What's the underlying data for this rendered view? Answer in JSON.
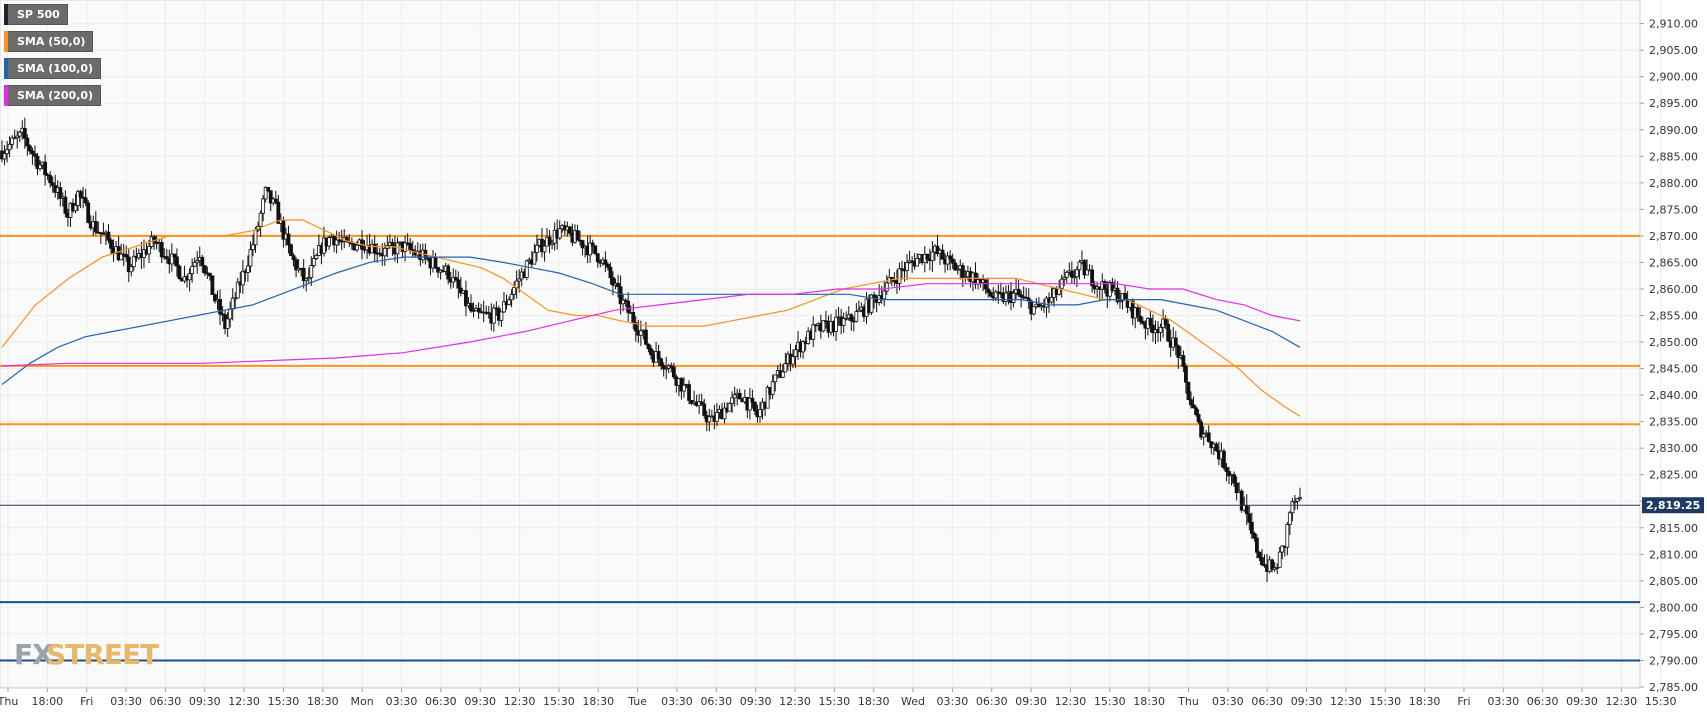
{
  "legend": {
    "main": {
      "label": "SP 500",
      "color": "#222222"
    },
    "sma50": {
      "label": "SMA (50,0)",
      "color": "#f7931e"
    },
    "sma100": {
      "label": "SMA (100,0)",
      "color": "#2165b0"
    },
    "sma200": {
      "label": "SMA (200,0)",
      "color": "#e52be5"
    }
  },
  "watermark": {
    "fx": "FX",
    "street": "STREET"
  },
  "chart_data": {
    "type": "candlestick",
    "symbol": "SP 500",
    "ylim": [
      2785,
      2912
    ],
    "y_ticks": [
      "2,785.00",
      "2,790.00",
      "2,795.00",
      "2,800.00",
      "2,805.00",
      "2,810.00",
      "2,815.00",
      "2,820.00",
      "2,825.00",
      "2,830.00",
      "2,835.00",
      "2,840.00",
      "2,845.00",
      "2,850.00",
      "2,855.00",
      "2,860.00",
      "2,865.00",
      "2,870.00",
      "2,875.00",
      "2,880.00",
      "2,885.00",
      "2,890.00",
      "2,895.00",
      "2,900.00",
      "2,905.00",
      "2,910.00"
    ],
    "x_ticks": [
      "Thu",
      "18:00",
      "Fri",
      "03:30",
      "06:30",
      "09:30",
      "12:30",
      "15:30",
      "18:30",
      "Mon",
      "03:30",
      "06:30",
      "09:30",
      "12:30",
      "15:30",
      "18:30",
      "Tue",
      "03:30",
      "06:30",
      "09:30",
      "12:30",
      "15:30",
      "18:30",
      "Wed",
      "03:30",
      "06:30",
      "09:30",
      "12:30",
      "15:30",
      "18:30",
      "Thu",
      "03:30",
      "06:30",
      "09:30",
      "12:30",
      "15:30",
      "18:30",
      "Fri",
      "03:30",
      "06:30",
      "09:30",
      "12:30",
      "15:30"
    ],
    "last_price": 2819.25,
    "last_price_label": "2,819.25",
    "horizontal_levels": [
      {
        "value": 2870,
        "color": "#f7931e"
      },
      {
        "value": 2845.5,
        "color": "#f7931e"
      },
      {
        "value": 2834.5,
        "color": "#f7931e"
      },
      {
        "value": 2801,
        "color": "#1c4e8a"
      },
      {
        "value": 2790,
        "color": "#1c4e8a"
      }
    ],
    "close_path": [
      [
        0,
        2886
      ],
      [
        8,
        2889
      ],
      [
        14,
        2884
      ],
      [
        20,
        2880
      ],
      [
        26,
        2874
      ],
      [
        30,
        2878
      ],
      [
        36,
        2872
      ],
      [
        44,
        2868
      ],
      [
        50,
        2864
      ],
      [
        60,
        2869
      ],
      [
        66,
        2866
      ],
      [
        72,
        2862
      ],
      [
        78,
        2867
      ],
      [
        84,
        2858
      ],
      [
        88,
        2853
      ],
      [
        96,
        2864
      ],
      [
        100,
        2870
      ],
      [
        104,
        2878
      ],
      [
        108,
        2875
      ],
      [
        114,
        2866
      ],
      [
        120,
        2861
      ],
      [
        126,
        2868
      ],
      [
        130,
        2870
      ],
      [
        136,
        2868
      ],
      [
        142,
        2869
      ],
      [
        150,
        2867
      ],
      [
        158,
        2868
      ],
      [
        166,
        2866
      ],
      [
        176,
        2863
      ],
      [
        186,
        2855
      ],
      [
        196,
        2855
      ],
      [
        204,
        2862
      ],
      [
        212,
        2868
      ],
      [
        220,
        2871
      ],
      [
        228,
        2869
      ],
      [
        236,
        2866
      ],
      [
        244,
        2858
      ],
      [
        252,
        2852
      ],
      [
        256,
        2848
      ],
      [
        262,
        2846
      ],
      [
        268,
        2842
      ],
      [
        274,
        2838
      ],
      [
        280,
        2835
      ],
      [
        286,
        2838
      ],
      [
        292,
        2840
      ],
      [
        298,
        2836
      ],
      [
        304,
        2842
      ],
      [
        312,
        2848
      ],
      [
        320,
        2852
      ],
      [
        326,
        2853
      ],
      [
        334,
        2854
      ],
      [
        342,
        2857
      ],
      [
        350,
        2861
      ],
      [
        356,
        2864
      ],
      [
        362,
        2866
      ],
      [
        368,
        2867
      ],
      [
        376,
        2864
      ],
      [
        384,
        2862
      ],
      [
        392,
        2858
      ],
      [
        400,
        2859
      ],
      [
        408,
        2856
      ],
      [
        414,
        2858
      ],
      [
        420,
        2862
      ],
      [
        426,
        2864
      ],
      [
        432,
        2861
      ],
      [
        440,
        2859
      ],
      [
        446,
        2856
      ],
      [
        452,
        2853
      ],
      [
        458,
        2853
      ],
      [
        464,
        2848
      ],
      [
        468,
        2840
      ],
      [
        472,
        2834
      ],
      [
        476,
        2832
      ],
      [
        480,
        2829
      ],
      [
        486,
        2824
      ],
      [
        490,
        2818
      ],
      [
        494,
        2812
      ],
      [
        498,
        2808
      ],
      [
        502,
        2807
      ],
      [
        506,
        2812
      ],
      [
        508,
        2818
      ],
      [
        510,
        2820
      ],
      [
        512,
        2819.25
      ]
    ],
    "candle_count": 520,
    "sma50_path": [
      [
        0,
        2849
      ],
      [
        12,
        2857
      ],
      [
        24,
        2862
      ],
      [
        36,
        2866
      ],
      [
        48,
        2868
      ],
      [
        60,
        2870
      ],
      [
        72,
        2870
      ],
      [
        80,
        2870
      ],
      [
        90,
        2871
      ],
      [
        100,
        2873
      ],
      [
        108,
        2873
      ],
      [
        116,
        2871
      ],
      [
        124,
        2869
      ],
      [
        132,
        2868
      ],
      [
        140,
        2868
      ],
      [
        148,
        2867
      ],
      [
        156,
        2866
      ],
      [
        164,
        2865
      ],
      [
        172,
        2864
      ],
      [
        180,
        2862
      ],
      [
        188,
        2859
      ],
      [
        196,
        2856
      ],
      [
        206,
        2855
      ],
      [
        214,
        2855
      ],
      [
        222,
        2854
      ],
      [
        232,
        2853
      ],
      [
        242,
        2853
      ],
      [
        252,
        2853
      ],
      [
        262,
        2854
      ],
      [
        272,
        2855
      ],
      [
        282,
        2856
      ],
      [
        292,
        2858
      ],
      [
        302,
        2860
      ],
      [
        312,
        2861
      ],
      [
        322,
        2862
      ],
      [
        332,
        2862
      ],
      [
        342,
        2862
      ],
      [
        350,
        2862
      ],
      [
        358,
        2862
      ],
      [
        364,
        2862
      ],
      [
        372,
        2861
      ],
      [
        380,
        2860
      ],
      [
        388,
        2859
      ],
      [
        396,
        2858
      ],
      [
        404,
        2858
      ],
      [
        412,
        2856
      ],
      [
        420,
        2854
      ],
      [
        428,
        2851
      ],
      [
        436,
        2848
      ],
      [
        444,
        2845
      ],
      [
        452,
        2841
      ],
      [
        460,
        2838
      ],
      [
        466,
        2836
      ]
    ],
    "sma100_path": [
      [
        0,
        2842
      ],
      [
        10,
        2846
      ],
      [
        20,
        2849
      ],
      [
        30,
        2851
      ],
      [
        40,
        2852
      ],
      [
        50,
        2853
      ],
      [
        60,
        2854
      ],
      [
        70,
        2855
      ],
      [
        80,
        2856
      ],
      [
        90,
        2857
      ],
      [
        100,
        2859
      ],
      [
        110,
        2861
      ],
      [
        120,
        2863
      ],
      [
        132,
        2865
      ],
      [
        144,
        2866
      ],
      [
        156,
        2866
      ],
      [
        168,
        2866
      ],
      [
        180,
        2865
      ],
      [
        190,
        2864
      ],
      [
        200,
        2863
      ],
      [
        212,
        2861
      ],
      [
        222,
        2859
      ],
      [
        232,
        2859
      ],
      [
        244,
        2859
      ],
      [
        256,
        2859
      ],
      [
        268,
        2859
      ],
      [
        280,
        2859
      ],
      [
        292,
        2859
      ],
      [
        304,
        2859
      ],
      [
        316,
        2858
      ],
      [
        326,
        2858
      ],
      [
        336,
        2858
      ],
      [
        346,
        2858
      ],
      [
        356,
        2858
      ],
      [
        366,
        2858
      ],
      [
        376,
        2857
      ],
      [
        386,
        2857
      ],
      [
        396,
        2858
      ],
      [
        406,
        2858
      ],
      [
        416,
        2858
      ],
      [
        426,
        2857
      ],
      [
        436,
        2856
      ],
      [
        446,
        2854
      ],
      [
        456,
        2852
      ],
      [
        466,
        2849
      ]
    ],
    "sma200_path": [
      [
        0,
        2845.5
      ],
      [
        24,
        2846
      ],
      [
        48,
        2846
      ],
      [
        72,
        2846
      ],
      [
        96,
        2846.5
      ],
      [
        120,
        2847
      ],
      [
        144,
        2848
      ],
      [
        168,
        2850
      ],
      [
        188,
        2852
      ],
      [
        204,
        2854
      ],
      [
        220,
        2856
      ],
      [
        236,
        2857
      ],
      [
        252,
        2858
      ],
      [
        268,
        2859
      ],
      [
        284,
        2859
      ],
      [
        300,
        2860
      ],
      [
        316,
        2860
      ],
      [
        332,
        2861
      ],
      [
        348,
        2861
      ],
      [
        364,
        2861
      ],
      [
        376,
        2861
      ],
      [
        388,
        2861
      ],
      [
        400,
        2861
      ],
      [
        412,
        2860
      ],
      [
        424,
        2860
      ],
      [
        436,
        2858
      ],
      [
        446,
        2857
      ],
      [
        456,
        2855
      ],
      [
        466,
        2854
      ]
    ]
  }
}
